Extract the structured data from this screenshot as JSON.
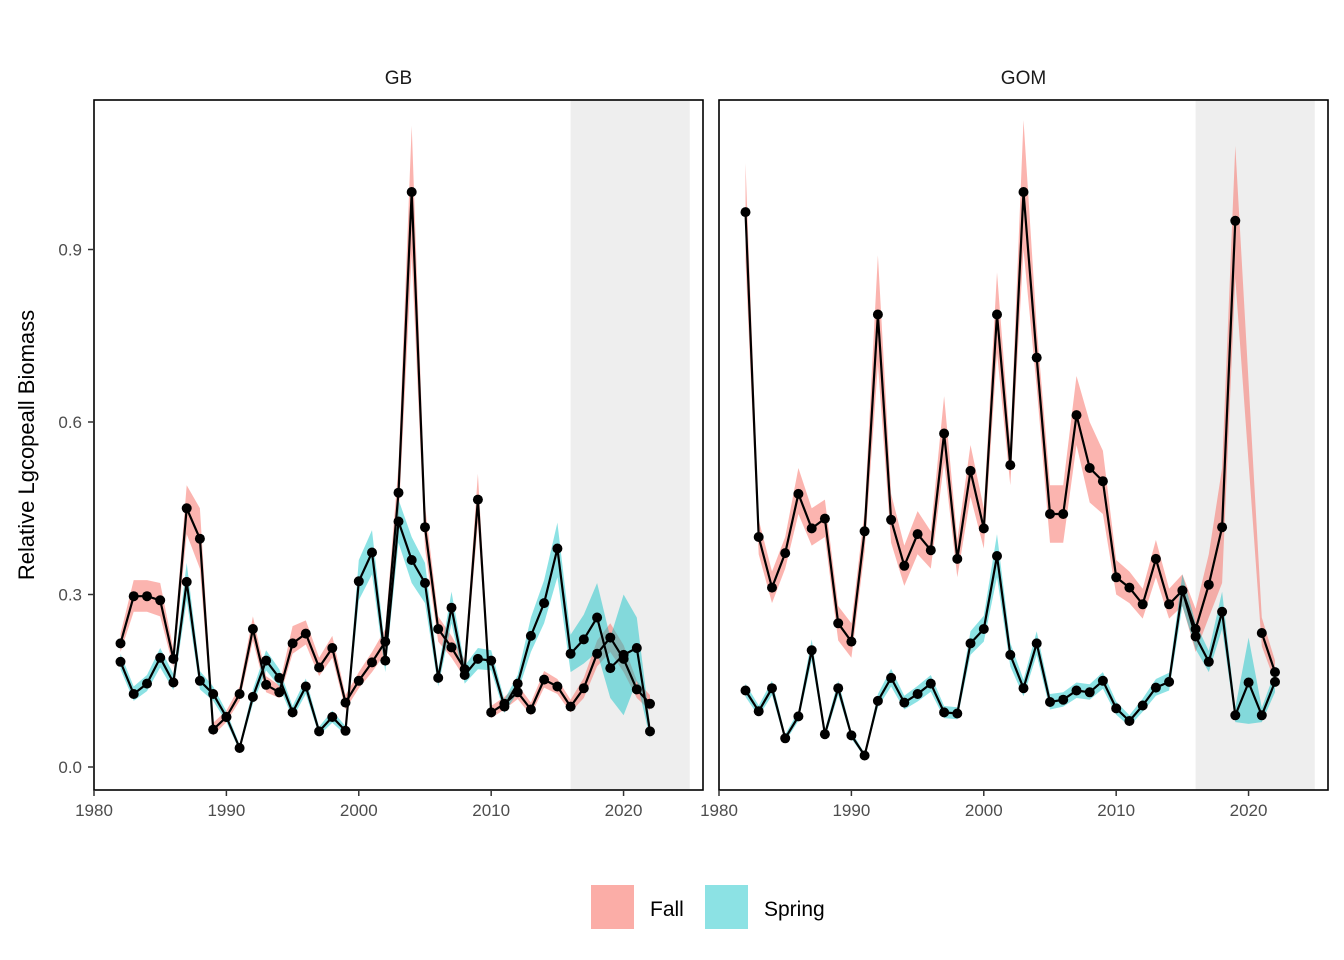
{
  "chart_data": {
    "type": "line",
    "ylabel": "Relative Lgcopeall Biomass",
    "xlabel": "",
    "xlim": [
      1980,
      2026
    ],
    "ylim": [
      -0.04,
      1.16
    ],
    "x_ticks": [
      1980,
      1990,
      2000,
      2010,
      2020
    ],
    "y_ticks": [
      0.0,
      0.3,
      0.6,
      0.9
    ],
    "y_tick_labels": [
      "0.0",
      "0.3",
      "0.6",
      "0.9"
    ],
    "shaded_region": [
      2016,
      2025
    ],
    "grid": false,
    "legend": {
      "position": "bottom",
      "entries": [
        "Fall",
        "Spring"
      ]
    },
    "series_colors": {
      "Fall": "#F8766D",
      "Spring": "#00BFC4"
    },
    "panels": [
      {
        "title": "GB",
        "series": [
          {
            "name": "Fall",
            "x": [
              1982,
              1983,
              1984,
              1985,
              1986,
              1987,
              1988,
              1989,
              1990,
              1991,
              1992,
              1993,
              1994,
              1995,
              1996,
              1997,
              1998,
              1999,
              2000,
              2001,
              2002,
              2003,
              2004,
              2005,
              2006,
              2007,
              2008,
              2009,
              2010,
              2011,
              2012,
              2013,
              2014,
              2015,
              2016,
              2017,
              2018,
              2019,
              2020,
              2021,
              2022
            ],
            "values": [
              0.215,
              0.297,
              0.297,
              0.29,
              0.188,
              0.45,
              0.397,
              0.065,
              0.087,
              0.127,
              0.24,
              0.143,
              0.13,
              0.215,
              0.232,
              0.173,
              0.207,
              0.112,
              0.15,
              0.182,
              0.218,
              0.477,
              1.0,
              0.417,
              0.24,
              0.208,
              0.17,
              0.465,
              0.095,
              0.11,
              0.13,
              0.1,
              0.152,
              0.14,
              0.105,
              0.137,
              0.197,
              0.225,
              0.188,
              0.135,
              0.11
            ],
            "lower": [
              0.2,
              0.27,
              0.27,
              0.262,
              0.173,
              0.405,
              0.345,
              0.055,
              0.078,
              0.115,
              0.22,
              0.13,
              0.12,
              0.197,
              0.213,
              0.158,
              0.19,
              0.1,
              0.137,
              0.165,
              0.198,
              0.43,
              0.89,
              0.38,
              0.218,
              0.19,
              0.155,
              0.425,
              0.085,
              0.1,
              0.118,
              0.09,
              0.138,
              0.127,
              0.095,
              0.12,
              0.175,
              0.2,
              0.165,
              0.12,
              0.098
            ],
            "upper": [
              0.232,
              0.325,
              0.325,
              0.32,
              0.205,
              0.49,
              0.45,
              0.077,
              0.098,
              0.14,
              0.262,
              0.158,
              0.142,
              0.245,
              0.255,
              0.19,
              0.228,
              0.125,
              0.165,
              0.2,
              0.24,
              0.525,
              1.115,
              0.455,
              0.262,
              0.228,
              0.187,
              0.51,
              0.106,
              0.122,
              0.143,
              0.112,
              0.167,
              0.153,
              0.117,
              0.155,
              0.22,
              0.25,
              0.212,
              0.15,
              0.125
            ]
          },
          {
            "name": "Spring",
            "x": [
              1982,
              1983,
              1984,
              1985,
              1986,
              1987,
              1988,
              1989,
              1990,
              1991,
              1992,
              1993,
              1994,
              1995,
              1996,
              1997,
              1998,
              1999,
              2000,
              2001,
              2002,
              2003,
              2004,
              2005,
              2006,
              2007,
              2008,
              2009,
              2010,
              2011,
              2012,
              2013,
              2014,
              2015,
              2016,
              2017,
              2018,
              2019,
              2020,
              2021,
              2022
            ],
            "values": [
              0.183,
              0.127,
              0.145,
              0.19,
              0.147,
              0.322,
              0.15,
              0.127,
              0.087,
              0.033,
              0.122,
              0.185,
              0.155,
              0.095,
              0.14,
              0.062,
              0.087,
              0.063,
              0.323,
              0.373,
              0.185,
              0.427,
              0.36,
              0.32,
              0.155,
              0.277,
              0.16,
              0.188,
              0.185,
              0.105,
              0.145,
              0.228,
              0.285,
              0.38,
              0.197,
              0.222,
              0.26,
              0.172,
              0.195,
              0.207,
              0.062
            ],
            "lower": [
              0.17,
              0.115,
              0.132,
              0.173,
              0.134,
              0.29,
              0.135,
              0.115,
              0.078,
              0.028,
              0.11,
              0.168,
              0.14,
              0.085,
              0.127,
              0.055,
              0.077,
              0.056,
              0.29,
              0.335,
              0.165,
              0.39,
              0.32,
              0.285,
              0.14,
              0.25,
              0.145,
              0.17,
              0.168,
              0.094,
              0.13,
              0.2,
              0.25,
              0.33,
              0.165,
              0.18,
              0.2,
              0.12,
              0.09,
              0.15,
              0.05
            ],
            "upper": [
              0.197,
              0.14,
              0.16,
              0.207,
              0.162,
              0.355,
              0.167,
              0.14,
              0.097,
              0.039,
              0.135,
              0.203,
              0.17,
              0.106,
              0.154,
              0.07,
              0.098,
              0.071,
              0.36,
              0.412,
              0.205,
              0.465,
              0.4,
              0.355,
              0.17,
              0.305,
              0.176,
              0.207,
              0.203,
              0.117,
              0.16,
              0.26,
              0.325,
              0.425,
              0.23,
              0.265,
              0.32,
              0.225,
              0.3,
              0.26,
              0.075
            ]
          }
        ]
      },
      {
        "title": "GOM",
        "series": [
          {
            "name": "Fall",
            "x": [
              1982,
              1983,
              1984,
              1985,
              1986,
              1987,
              1988,
              1989,
              1990,
              1991,
              1992,
              1993,
              1994,
              1995,
              1996,
              1997,
              1998,
              1999,
              2000,
              2001,
              2002,
              2003,
              2004,
              2005,
              2006,
              2007,
              2008,
              2009,
              2010,
              2011,
              2012,
              2013,
              2014,
              2015,
              2016,
              2017,
              2018,
              2019,
              2021,
              2022
            ],
            "values": [
              0.965,
              0.4,
              0.312,
              0.372,
              0.475,
              0.415,
              0.432,
              0.25,
              0.218,
              0.41,
              0.787,
              0.43,
              0.35,
              0.405,
              0.377,
              0.58,
              0.362,
              0.515,
              0.415,
              0.787,
              0.525,
              1.0,
              0.712,
              0.44,
              0.44,
              0.612,
              0.52,
              0.497,
              0.33,
              0.312,
              0.283,
              0.362,
              0.283,
              0.307,
              0.24,
              0.317,
              0.417,
              0.95,
              0.233,
              0.165
            ],
            "lower": [
              0.88,
              0.37,
              0.285,
              0.345,
              0.44,
              0.385,
              0.4,
              0.22,
              0.19,
              0.375,
              0.7,
              0.39,
              0.315,
              0.37,
              0.345,
              0.53,
              0.33,
              0.47,
              0.38,
              0.72,
              0.49,
              0.9,
              0.66,
              0.39,
              0.39,
              0.56,
              0.46,
              0.44,
              0.3,
              0.285,
              0.258,
              0.33,
              0.258,
              0.28,
              0.2,
              0.26,
              0.32,
              0.85,
              0.21,
              0.148
            ],
            "upper": [
              1.05,
              0.43,
              0.34,
              0.4,
              0.52,
              0.45,
              0.465,
              0.28,
              0.25,
              0.445,
              0.89,
              0.475,
              0.385,
              0.445,
              0.41,
              0.645,
              0.395,
              0.56,
              0.45,
              0.86,
              0.56,
              1.125,
              0.765,
              0.49,
              0.49,
              0.68,
              0.6,
              0.55,
              0.36,
              0.34,
              0.31,
              0.395,
              0.31,
              0.335,
              0.275,
              0.37,
              0.52,
              1.08,
              0.26,
              0.185
            ]
          },
          {
            "name": "Spring",
            "x": [
              1982,
              1983,
              1984,
              1985,
              1986,
              1987,
              1988,
              1989,
              1990,
              1991,
              1992,
              1993,
              1994,
              1995,
              1996,
              1997,
              1998,
              1999,
              2000,
              2001,
              2002,
              2003,
              2004,
              2005,
              2006,
              2007,
              2008,
              2009,
              2010,
              2011,
              2012,
              2013,
              2014,
              2015,
              2016,
              2017,
              2018,
              2019,
              2020,
              2021,
              2022
            ],
            "values": [
              0.133,
              0.097,
              0.137,
              0.05,
              0.088,
              0.203,
              0.057,
              0.137,
              0.055,
              0.02,
              0.115,
              0.155,
              0.112,
              0.127,
              0.145,
              0.095,
              0.093,
              0.215,
              0.24,
              0.367,
              0.195,
              0.137,
              0.215,
              0.113,
              0.117,
              0.133,
              0.13,
              0.15,
              0.102,
              0.08,
              0.107,
              0.138,
              0.148,
              0.307,
              0.227,
              0.183,
              0.27,
              0.09,
              0.147,
              0.09,
              0.148
            ],
            "lower": [
              0.122,
              0.088,
              0.125,
              0.044,
              0.08,
              0.185,
              0.05,
              0.125,
              0.049,
              0.017,
              0.104,
              0.14,
              0.1,
              0.114,
              0.131,
              0.085,
              0.083,
              0.195,
              0.218,
              0.33,
              0.175,
              0.123,
              0.195,
              0.1,
              0.105,
              0.12,
              0.117,
              0.136,
              0.091,
              0.071,
              0.096,
              0.124,
              0.133,
              0.28,
              0.205,
              0.165,
              0.24,
              0.078,
              0.075,
              0.078,
              0.13
            ],
            "upper": [
              0.145,
              0.107,
              0.15,
              0.057,
              0.097,
              0.222,
              0.065,
              0.15,
              0.062,
              0.024,
              0.127,
              0.171,
              0.124,
              0.141,
              0.16,
              0.106,
              0.104,
              0.236,
              0.263,
              0.405,
              0.216,
              0.152,
              0.236,
              0.127,
              0.13,
              0.147,
              0.144,
              0.165,
              0.114,
              0.09,
              0.119,
              0.153,
              0.164,
              0.335,
              0.25,
              0.202,
              0.305,
              0.103,
              0.225,
              0.103,
              0.166
            ]
          }
        ]
      }
    ]
  }
}
